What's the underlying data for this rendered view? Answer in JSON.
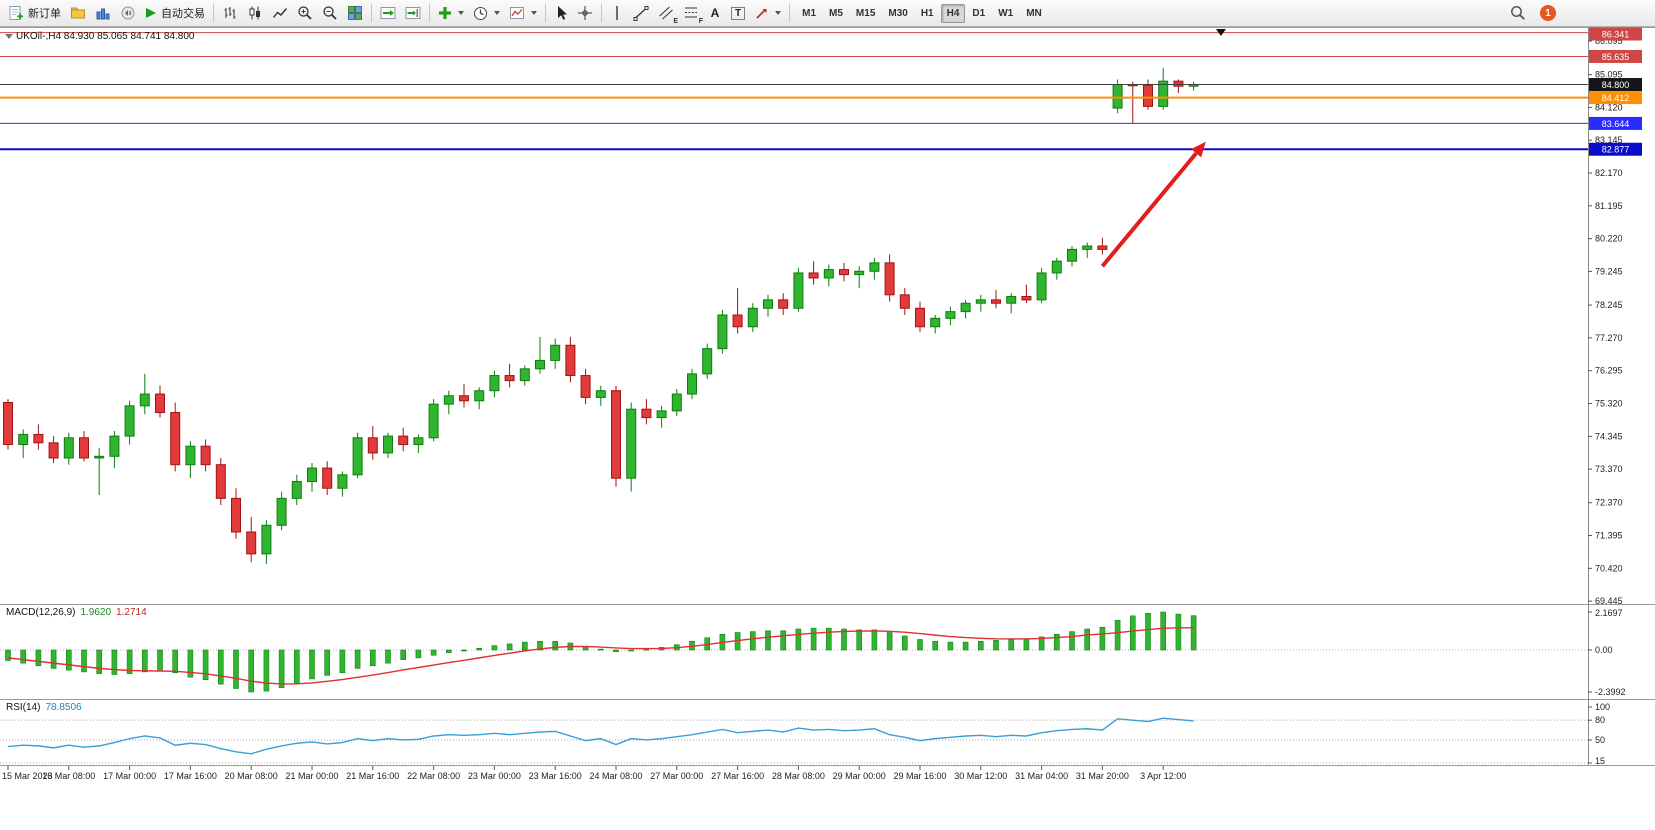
{
  "toolbar": {
    "new_order_label": "新订单",
    "autotrading_label": "自动交易",
    "text_tool_label": "A",
    "label_tool_label": "T",
    "channel_tool_letter": "E",
    "fibo_tool_letter": "F",
    "timeframes": [
      "M1",
      "M5",
      "M15",
      "M30",
      "H1",
      "H4",
      "D1",
      "W1",
      "MN"
    ],
    "active_timeframe": "H4",
    "notification_count": "1"
  },
  "colors": {
    "up": "#2fb52f",
    "up_stroke": "#0e7d0e",
    "down": "#e13b3b",
    "down_stroke": "#a31212",
    "macd_histogram": "#2fb52f",
    "macd_signal": "#e03030",
    "rsi_line": "#3a9fd6",
    "arrow": "#e21d1d"
  },
  "chart": {
    "symbol_info": "UKOil-,H4 84.930 85.065 84.741 84.800",
    "price_axis_ticks": [
      "86.095",
      "85.095",
      "84.120",
      "83.145",
      "82.170",
      "81.195",
      "80.220",
      "79.245",
      "78.245",
      "77.270",
      "76.295",
      "75.320",
      "74.345",
      "73.370",
      "72.370",
      "71.395",
      "70.420",
      "69.445"
    ],
    "price_lines": [
      {
        "value": 86.341,
        "label": "86.341",
        "color": "#cf4646",
        "width": 1
      },
      {
        "value": 85.635,
        "label": "85.635",
        "color": "#cf4646",
        "width": 1
      },
      {
        "value": 84.8,
        "label": "84.800",
        "color": "#3f3f3f",
        "width": 1,
        "tag_color": "#161616"
      },
      {
        "value": 84.412,
        "label": "84.412",
        "color": "#ff8e00",
        "width": 2
      },
      {
        "value": 83.644,
        "label": "83.644",
        "color": "#2b2bff",
        "width": 1
      },
      {
        "value": 82.877,
        "label": "82.877",
        "color": "#0b0bcc",
        "width": 2
      }
    ],
    "arrow": {
      "from_index": 72.0,
      "from_price": 79.4,
      "to_index": 78.8,
      "to_price": 83.1
    },
    "top_marker_index": 79.8
  },
  "macd": {
    "label": "MACD(12,26,9)",
    "value_main": "1.9620",
    "value_signal": "1.2714",
    "axis": [
      {
        "value": 2.1697,
        "label": "2.1697"
      },
      {
        "value": 0,
        "label": "0.00"
      },
      {
        "value": -2.3992,
        "label": "-2.3992"
      }
    ]
  },
  "rsi": {
    "label": "RSI(14)",
    "value": "78.8506",
    "axis": [
      {
        "value": 100,
        "label": "100"
      },
      {
        "value": 80,
        "label": "80"
      },
      {
        "value": 50,
        "label": "50"
      },
      {
        "value": 15,
        "label": "15"
      }
    ],
    "levels": [
      80,
      50,
      15
    ]
  },
  "chart_data": {
    "type": "candlestick",
    "symbol": "UKOil-",
    "timeframe": "H4",
    "ohlc_display": {
      "open": "84.930",
      "high": "85.065",
      "low": "84.741",
      "close": "84.800"
    },
    "label_every_n_candles": 4,
    "time_labels": [
      "15 Mar 2023",
      "16 Mar 08:00",
      "17 Mar 00:00",
      "17 Mar 16:00",
      "20 Mar 08:00",
      "21 Mar 00:00",
      "21 Mar 16:00",
      "22 Mar 08:00",
      "23 Mar 00:00",
      "23 Mar 16:00",
      "24 Mar 08:00",
      "27 Mar 00:00",
      "27 Mar 16:00",
      "28 Mar 08:00",
      "29 Mar 00:00",
      "29 Mar 16:00",
      "30 Mar 12:00",
      "31 Mar 04:00",
      "31 Mar 20:00",
      "3 Apr 12:00"
    ],
    "candles_ohlc": [
      [
        75.35,
        75.45,
        73.95,
        74.1
      ],
      [
        74.1,
        74.55,
        73.7,
        74.4
      ],
      [
        74.4,
        74.7,
        73.95,
        74.15
      ],
      [
        74.15,
        74.35,
        73.55,
        73.7
      ],
      [
        73.7,
        74.45,
        73.5,
        74.3
      ],
      [
        74.3,
        74.5,
        73.6,
        73.7
      ],
      [
        73.7,
        74.0,
        72.6,
        73.75
      ],
      [
        73.75,
        74.5,
        73.4,
        74.35
      ],
      [
        74.35,
        75.4,
        74.1,
        75.25
      ],
      [
        75.25,
        76.2,
        75.0,
        75.6
      ],
      [
        75.6,
        75.85,
        74.9,
        75.05
      ],
      [
        75.05,
        75.35,
        73.3,
        73.5
      ],
      [
        73.5,
        74.2,
        73.1,
        74.05
      ],
      [
        74.05,
        74.25,
        73.3,
        73.5
      ],
      [
        73.5,
        73.7,
        72.3,
        72.5
      ],
      [
        72.5,
        72.8,
        71.3,
        71.5
      ],
      [
        71.5,
        71.95,
        70.6,
        70.85
      ],
      [
        70.85,
        71.85,
        70.55,
        71.7
      ],
      [
        71.7,
        72.7,
        71.55,
        72.5
      ],
      [
        72.5,
        73.2,
        72.3,
        73.0
      ],
      [
        73.0,
        73.55,
        72.7,
        73.4
      ],
      [
        73.4,
        73.6,
        72.6,
        72.8
      ],
      [
        72.8,
        73.3,
        72.55,
        73.2
      ],
      [
        73.2,
        74.45,
        73.1,
        74.3
      ],
      [
        74.3,
        74.65,
        73.65,
        73.85
      ],
      [
        73.85,
        74.45,
        73.7,
        74.35
      ],
      [
        74.35,
        74.6,
        73.9,
        74.1
      ],
      [
        74.1,
        74.4,
        73.85,
        74.3
      ],
      [
        74.3,
        75.45,
        74.2,
        75.3
      ],
      [
        75.3,
        75.7,
        75.0,
        75.55
      ],
      [
        75.55,
        75.9,
        75.2,
        75.4
      ],
      [
        75.4,
        75.8,
        75.15,
        75.7
      ],
      [
        75.7,
        76.3,
        75.5,
        76.15
      ],
      [
        76.15,
        76.5,
        75.8,
        76.0
      ],
      [
        76.0,
        76.45,
        75.85,
        76.35
      ],
      [
        76.35,
        77.3,
        76.2,
        76.6
      ],
      [
        76.6,
        77.25,
        76.35,
        77.05
      ],
      [
        77.05,
        77.3,
        75.95,
        76.15
      ],
      [
        76.15,
        76.35,
        75.3,
        75.5
      ],
      [
        75.5,
        75.85,
        75.25,
        75.7
      ],
      [
        75.7,
        75.85,
        72.85,
        73.1
      ],
      [
        73.1,
        75.35,
        72.7,
        75.15
      ],
      [
        75.15,
        75.45,
        74.7,
        74.9
      ],
      [
        74.9,
        75.25,
        74.6,
        75.1
      ],
      [
        75.1,
        75.75,
        74.95,
        75.6
      ],
      [
        75.6,
        76.35,
        75.45,
        76.2
      ],
      [
        76.2,
        77.1,
        76.05,
        76.95
      ],
      [
        76.95,
        78.1,
        76.8,
        77.95
      ],
      [
        77.95,
        78.75,
        77.4,
        77.6
      ],
      [
        77.6,
        78.3,
        77.45,
        78.15
      ],
      [
        78.15,
        78.55,
        77.9,
        78.4
      ],
      [
        78.4,
        78.6,
        77.95,
        78.15
      ],
      [
        78.15,
        79.35,
        78.05,
        79.2
      ],
      [
        79.2,
        79.55,
        78.85,
        79.05
      ],
      [
        79.05,
        79.45,
        78.8,
        79.3
      ],
      [
        79.3,
        79.5,
        78.95,
        79.15
      ],
      [
        79.15,
        79.4,
        78.75,
        79.25
      ],
      [
        79.25,
        79.65,
        79.0,
        79.5
      ],
      [
        79.5,
        79.75,
        78.35,
        78.55
      ],
      [
        78.55,
        78.75,
        77.95,
        78.15
      ],
      [
        78.15,
        78.35,
        77.45,
        77.6
      ],
      [
        77.6,
        77.95,
        77.4,
        77.85
      ],
      [
        77.85,
        78.2,
        77.65,
        78.05
      ],
      [
        78.05,
        78.4,
        77.85,
        78.3
      ],
      [
        78.3,
        78.55,
        78.05,
        78.4
      ],
      [
        78.4,
        78.7,
        78.15,
        78.3
      ],
      [
        78.3,
        78.6,
        78.0,
        78.5
      ],
      [
        78.5,
        78.85,
        78.3,
        78.4
      ],
      [
        78.4,
        79.35,
        78.3,
        79.2
      ],
      [
        79.2,
        79.65,
        79.0,
        79.55
      ],
      [
        79.55,
        80.0,
        79.4,
        79.9
      ],
      [
        79.9,
        80.1,
        79.65,
        80.0
      ],
      [
        80.0,
        80.25,
        79.75,
        79.9
      ],
      [
        84.1,
        84.95,
        83.95,
        84.8
      ],
      [
        84.8,
        84.88,
        83.65,
        84.78
      ],
      [
        84.78,
        84.95,
        84.05,
        84.15
      ],
      [
        84.15,
        85.3,
        84.05,
        84.9
      ],
      [
        84.9,
        84.95,
        84.55,
        84.75
      ],
      [
        84.75,
        84.88,
        84.62,
        84.8
      ]
    ],
    "macd_histogram": [
      -0.6,
      -0.75,
      -0.9,
      -1.05,
      -1.15,
      -1.25,
      -1.35,
      -1.4,
      -1.35,
      -1.25,
      -1.2,
      -1.3,
      -1.55,
      -1.7,
      -1.95,
      -2.2,
      -2.4,
      -2.35,
      -2.15,
      -1.9,
      -1.65,
      -1.45,
      -1.3,
      -1.05,
      -0.9,
      -0.75,
      -0.55,
      -0.45,
      -0.3,
      -0.15,
      -0.05,
      0.1,
      0.25,
      0.35,
      0.45,
      0.5,
      0.5,
      0.4,
      0.2,
      0.05,
      -0.1,
      -0.05,
      0.05,
      0.15,
      0.3,
      0.5,
      0.7,
      0.9,
      1.0,
      1.05,
      1.1,
      1.1,
      1.2,
      1.25,
      1.25,
      1.2,
      1.15,
      1.15,
      1.0,
      0.8,
      0.6,
      0.5,
      0.45,
      0.45,
      0.5,
      0.55,
      0.6,
      0.65,
      0.75,
      0.9,
      1.05,
      1.2,
      1.3,
      1.7,
      1.95,
      2.1,
      2.17,
      2.05,
      1.96
    ],
    "macd_signal": [
      -0.45,
      -0.55,
      -0.65,
      -0.75,
      -0.85,
      -0.95,
      -1.05,
      -1.12,
      -1.17,
      -1.19,
      -1.2,
      -1.22,
      -1.28,
      -1.36,
      -1.48,
      -1.62,
      -1.78,
      -1.89,
      -1.94,
      -1.93,
      -1.88,
      -1.79,
      -1.69,
      -1.56,
      -1.43,
      -1.29,
      -1.14,
      -1.0,
      -0.86,
      -0.72,
      -0.59,
      -0.45,
      -0.31,
      -0.18,
      -0.05,
      0.06,
      0.15,
      0.2,
      0.2,
      0.17,
      0.12,
      0.08,
      0.08,
      0.09,
      0.13,
      0.21,
      0.31,
      0.43,
      0.54,
      0.64,
      0.73,
      0.81,
      0.89,
      0.96,
      1.02,
      1.06,
      1.08,
      1.09,
      1.07,
      1.02,
      0.94,
      0.85,
      0.77,
      0.71,
      0.67,
      0.64,
      0.63,
      0.63,
      0.66,
      0.71,
      0.77,
      0.86,
      0.92,
      0.99,
      1.08,
      1.17,
      1.24,
      1.27,
      1.27
    ],
    "rsi": [
      40,
      42,
      41,
      38,
      42,
      39,
      41,
      46,
      52,
      56,
      53,
      42,
      45,
      43,
      37,
      32,
      29,
      36,
      41,
      45,
      47,
      44,
      46,
      52,
      49,
      52,
      50,
      51,
      56,
      58,
      57,
      58,
      60,
      58,
      60,
      62,
      63,
      56,
      49,
      52,
      43,
      52,
      50,
      52,
      55,
      58,
      62,
      66,
      61,
      63,
      65,
      62,
      68,
      65,
      66,
      64,
      65,
      67,
      58,
      54,
      49,
      52,
      54,
      56,
      57,
      55,
      57,
      56,
      61,
      64,
      66,
      67,
      65,
      82,
      80,
      78,
      83,
      81,
      78.85
    ]
  }
}
